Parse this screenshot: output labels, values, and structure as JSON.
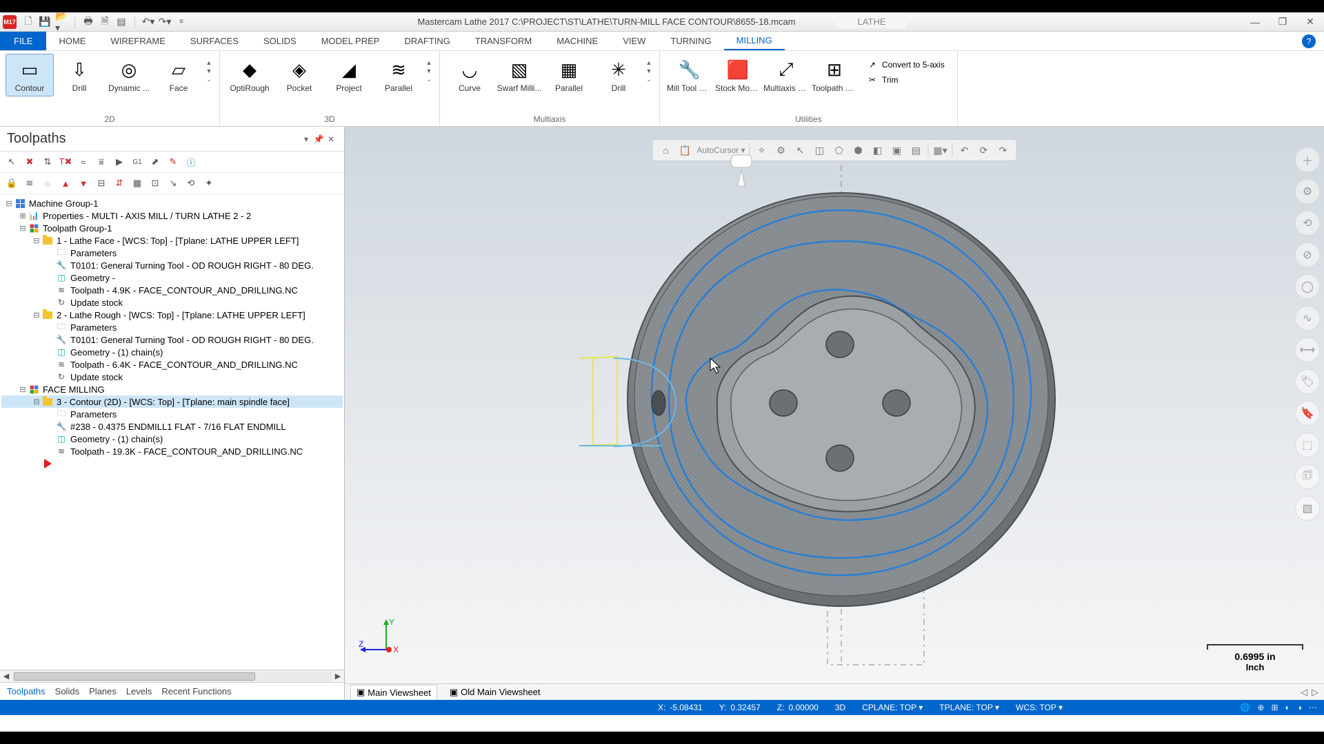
{
  "app_icon_text": "M17",
  "title": "Mastercam Lathe 2017  C:\\PROJECT\\ST\\LATHE\\TURN-MILL FACE CONTOUR\\8655-18.mcam",
  "context_tab": "LATHE",
  "window_controls": {
    "min": "—",
    "max": "❐",
    "close": "✕"
  },
  "file_tab": "FILE",
  "ribbon_tabs": [
    "HOME",
    "WIREFRAME",
    "SURFACES",
    "SOLIDS",
    "MODEL PREP",
    "DRAFTING",
    "TRANSFORM",
    "MACHINE",
    "VIEW",
    "TURNING",
    "MILLING"
  ],
  "active_ribbon_tab": "MILLING",
  "ribbon": {
    "g2d": {
      "label": "2D",
      "buttons": [
        {
          "label": "Contour",
          "selected": true,
          "icon": "▭"
        },
        {
          "label": "Drill",
          "icon": "⇩"
        },
        {
          "label": "Dynamic ...",
          "icon": "◎"
        },
        {
          "label": "Face",
          "icon": "▱"
        }
      ]
    },
    "g3d": {
      "label": "3D",
      "buttons": [
        {
          "label": "OptiRough",
          "icon": "◆"
        },
        {
          "label": "Pocket",
          "icon": "◈"
        },
        {
          "label": "Project",
          "icon": "◢"
        },
        {
          "label": "Parallel",
          "icon": "≋"
        }
      ]
    },
    "gmulti": {
      "label": "Multiaxis",
      "buttons": [
        {
          "label": "Curve",
          "icon": "◡"
        },
        {
          "label": "Swarf Milli...",
          "icon": "▧"
        },
        {
          "label": "Parallel",
          "icon": "▦"
        },
        {
          "label": "Drill",
          "icon": "✳"
        }
      ]
    },
    "gutil": {
      "label": "Utilities",
      "buttons": [
        {
          "label": "Mill Tool Manager",
          "icon": "🔧"
        },
        {
          "label": "Stock Model ▾",
          "icon": "🟥"
        },
        {
          "label": "Multiaxis Linking",
          "icon": "⤢"
        },
        {
          "label": "Toolpath Transform",
          "icon": "⊞"
        }
      ],
      "side": [
        {
          "label": "Convert to 5-axis",
          "icon": "↗"
        },
        {
          "label": "Trim",
          "icon": "✂"
        }
      ]
    }
  },
  "panel": {
    "title": "Toolpaths",
    "bottom_tabs": [
      "Toolpaths",
      "Solids",
      "Planes",
      "Levels",
      "Recent Functions"
    ],
    "active_bottom_tab": "Toolpaths"
  },
  "tree": [
    {
      "d": 0,
      "t": "⊟",
      "ic": "grid",
      "txt": "Machine Group-1"
    },
    {
      "d": 1,
      "t": "⊞",
      "ic": "chart",
      "txt": "Properties - MULTI - AXIS  MILL / TURN  LATHE 2 - 2"
    },
    {
      "d": 1,
      "t": "⊟",
      "ic": "grp",
      "txt": "Toolpath Group-1"
    },
    {
      "d": 2,
      "t": "⊟",
      "ic": "fld",
      "txt": "1 - Lathe Face - [WCS: Top] - [Tplane: LATHE UPPER LEFT]"
    },
    {
      "d": 3,
      "t": "",
      "ic": "par",
      "txt": "Parameters"
    },
    {
      "d": 3,
      "t": "",
      "ic": "tool",
      "txt": "T0101: General Turning Tool - OD ROUGH RIGHT - 80 DEG."
    },
    {
      "d": 3,
      "t": "",
      "ic": "geo",
      "txt": "Geometry -"
    },
    {
      "d": 3,
      "t": "",
      "ic": "tp",
      "txt": "Toolpath - 4.9K - FACE_CONTOUR_AND_DRILLING.NC"
    },
    {
      "d": 3,
      "t": "",
      "ic": "upd",
      "txt": "Update stock"
    },
    {
      "d": 2,
      "t": "⊟",
      "ic": "fld",
      "txt": "2 - Lathe Rough - [WCS: Top] - [Tplane: LATHE UPPER LEFT]"
    },
    {
      "d": 3,
      "t": "",
      "ic": "par",
      "txt": "Parameters"
    },
    {
      "d": 3,
      "t": "",
      "ic": "tool",
      "txt": "T0101: General Turning Tool - OD ROUGH RIGHT - 80 DEG."
    },
    {
      "d": 3,
      "t": "",
      "ic": "geo",
      "txt": "Geometry -  (1) chain(s)"
    },
    {
      "d": 3,
      "t": "",
      "ic": "tp",
      "txt": "Toolpath - 6.4K - FACE_CONTOUR_AND_DRILLING.NC"
    },
    {
      "d": 3,
      "t": "",
      "ic": "upd",
      "txt": "Update stock"
    },
    {
      "d": 1,
      "t": "⊟",
      "ic": "grp",
      "txt": "FACE MILLING"
    },
    {
      "d": 2,
      "t": "⊟",
      "ic": "fld",
      "txt": "3 - Contour (2D) - [WCS: Top] - [Tplane: main spindle face]",
      "sel": true
    },
    {
      "d": 3,
      "t": "",
      "ic": "par",
      "txt": "Parameters"
    },
    {
      "d": 3,
      "t": "",
      "ic": "tool",
      "txt": "#238 - 0.4375 ENDMILL1 FLAT -  7/16 FLAT ENDMILL"
    },
    {
      "d": 3,
      "t": "",
      "ic": "geo",
      "txt": "Geometry -  (1) chain(s)"
    },
    {
      "d": 3,
      "t": "",
      "ic": "tp",
      "txt": "Toolpath - 19.3K - FACE_CONTOUR_AND_DRILLING.NC"
    },
    {
      "d": 2,
      "t": "",
      "ic": "arrow",
      "txt": ""
    }
  ],
  "viewport": {
    "autocursor": "AutoCursor ▾",
    "scale_value": "0.6995 in",
    "scale_unit": "Inch",
    "viewsheets": [
      "Main Viewsheet",
      "Old Main Viewsheet"
    ],
    "active_viewsheet": "Main Viewsheet",
    "gnomon": {
      "z": "Z",
      "y": "Y",
      "x": "X"
    },
    "colors": {
      "part_body": "#8a8f94",
      "part_dark": "#6b7075",
      "toolpath": "#2a7fd4",
      "chain_sel": "#e8e84a",
      "chain_sel2": "#6bb8e6"
    }
  },
  "status": {
    "x": {
      "lbl": "X:",
      "val": "-5.08431"
    },
    "y": {
      "lbl": "Y:",
      "val": "0.32457"
    },
    "z": {
      "lbl": "Z:",
      "val": "0.00000"
    },
    "mode": "3D",
    "cplane": "CPLANE: TOP ▾",
    "tplane": "TPLANE: TOP ▾",
    "wcs": "WCS: TOP ▾"
  }
}
